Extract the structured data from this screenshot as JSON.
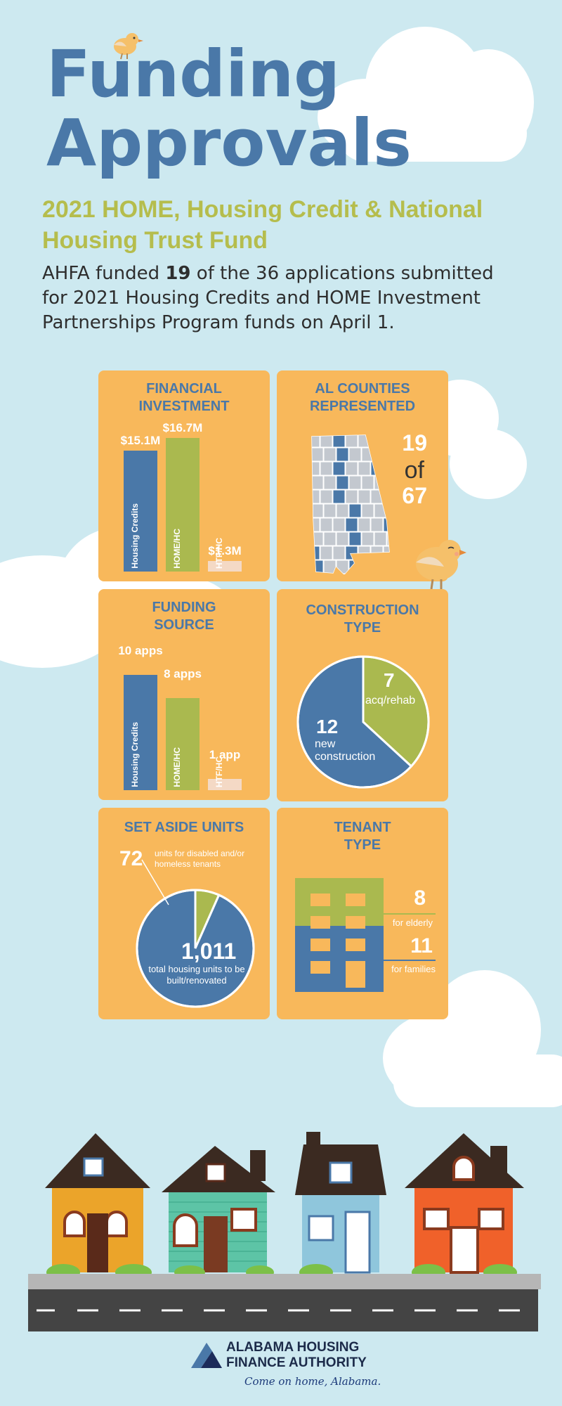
{
  "header": {
    "title_line1": "Funding",
    "title_line2": "Approvals",
    "subtitle": "2021 HOME, Housing Credit & National Housing Trust Fund",
    "intro_before": "AHFA funded ",
    "intro_bold": "19",
    "intro_after": " of the 36 applications submitted for 2021 Housing Credits and HOME Investment Partnerships Program funds on April 1."
  },
  "colors": {
    "background": "#cde9f0",
    "panel": "#f8b85b",
    "blue": "#4a78a8",
    "green": "#aab94f",
    "pale": "#f4d9c5",
    "white": "#ffffff"
  },
  "chart_data": [
    {
      "type": "bar",
      "title": "FINANCIAL INVESTMENT",
      "categories": [
        "Housing Credits",
        "HOME/HC",
        "HTF/HC"
      ],
      "values": [
        15.1,
        16.7,
        1.3
      ],
      "data_labels": [
        "$15.1M",
        "$16.7M",
        "$1.3M"
      ],
      "colors": [
        "#4a78a8",
        "#aab94f",
        "#f4d9c5"
      ],
      "ylim": [
        0,
        18
      ]
    },
    {
      "type": "bar",
      "title": "FUNDING SOURCE",
      "categories": [
        "Housing Credits",
        "HOME/HC",
        "HTF/HC"
      ],
      "values": [
        10,
        8,
        1
      ],
      "data_labels": [
        "10 apps",
        "8 apps",
        "1 app"
      ],
      "colors": [
        "#4a78a8",
        "#aab94f",
        "#f4d9c5"
      ],
      "ylim": [
        0,
        11
      ]
    },
    {
      "type": "pie",
      "title": "CONSTRUCTION TYPE",
      "categories": [
        "acq/rehab",
        "new construction"
      ],
      "values": [
        7,
        12
      ],
      "value_labels": [
        "7",
        "12"
      ],
      "colors": [
        "#aab94f",
        "#4a78a8"
      ]
    },
    {
      "type": "pie",
      "title": "SET ASIDE UNITS",
      "categories": [
        "units for disabled and/or homeless tenants",
        "total housing units to be built/renovated"
      ],
      "values": [
        72,
        1011
      ],
      "value_labels": [
        "72",
        "1,011"
      ],
      "colors": [
        "#aab94f",
        "#4a78a8"
      ]
    },
    {
      "type": "bar",
      "title": "TENANT TYPE",
      "categories": [
        "for elderly",
        "for families"
      ],
      "values": [
        8,
        11
      ],
      "value_labels": [
        "8",
        "11"
      ],
      "colors": [
        "#aab94f",
        "#4a78a8"
      ]
    }
  ],
  "counties": {
    "title": "AL COUNTIES REPRESENTED",
    "value_line1": "19",
    "value_line2": "of",
    "value_line3": "67",
    "represented": 19,
    "total": 67
  },
  "footer": {
    "org_line1": "ALABAMA HOUSING",
    "org_line2": "FINANCE AUTHORITY",
    "tagline": "Come on home, Alabama."
  }
}
